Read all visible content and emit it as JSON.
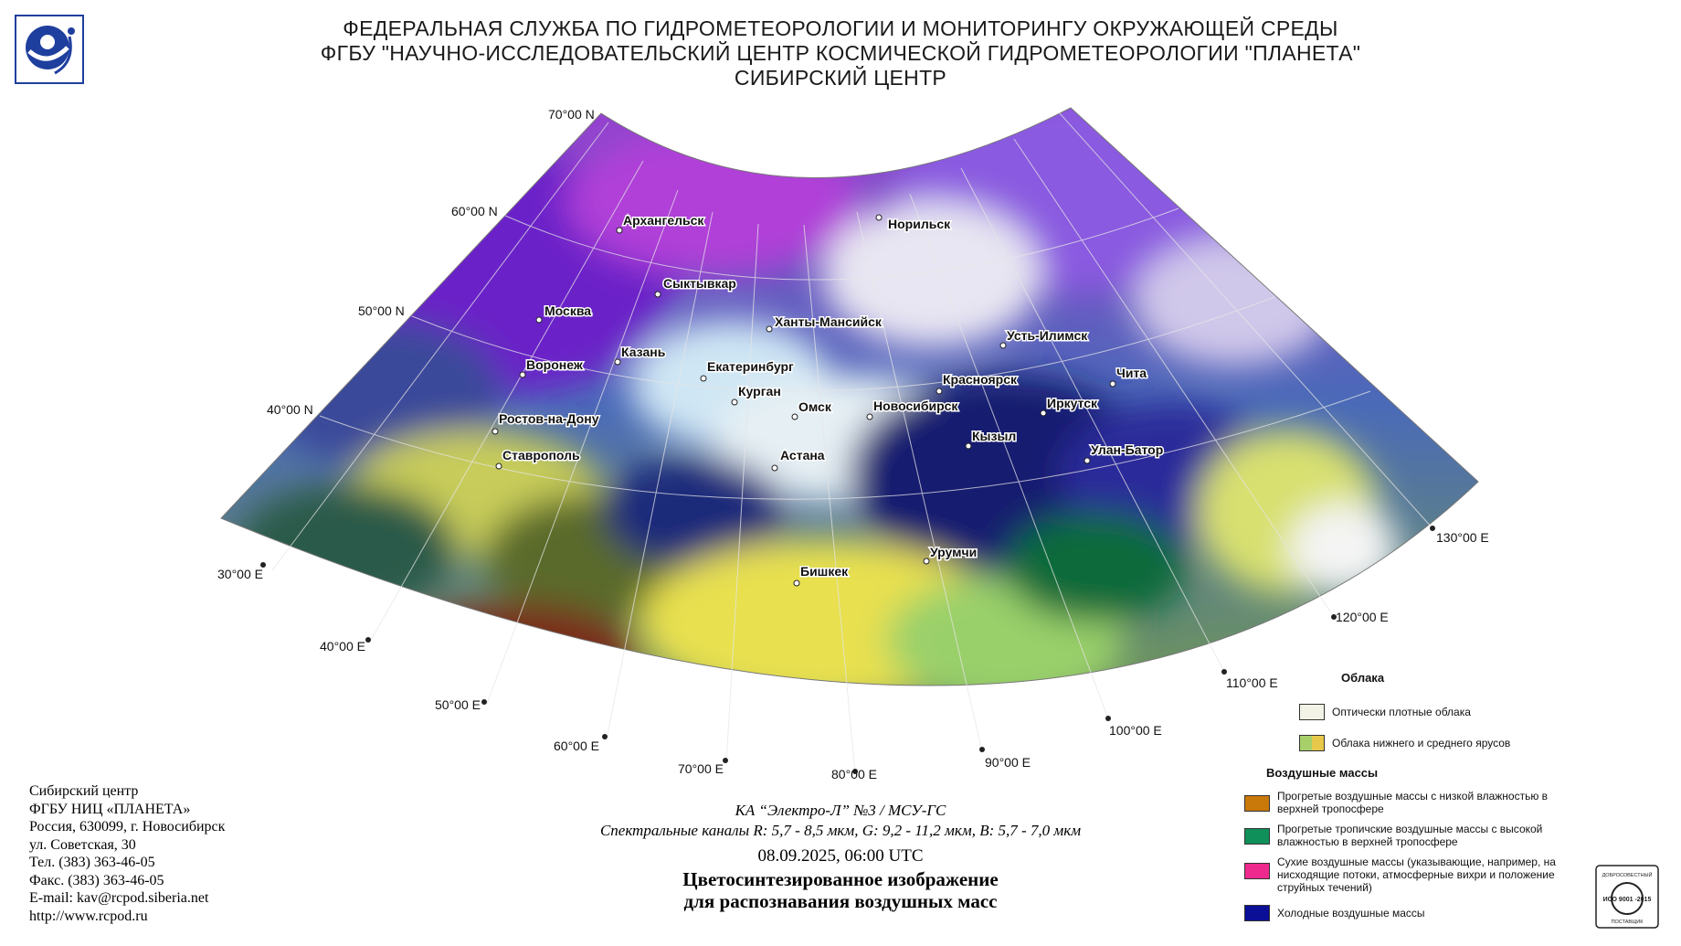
{
  "header": {
    "line1": "ФЕДЕРАЛЬНАЯ СЛУЖБА ПО ГИДРОМЕТЕОРОЛОГИИ И МОНИТОРИНГУ ОКРУЖАЮЩЕЙ СРЕДЫ",
    "line2": "ФГБУ \"НАУЧНО-ИССЛЕДОВАТЕЛЬСКИЙ ЦЕНТР КОСМИЧЕСКОЙ ГИДРОМЕТЕОРОЛОГИИ \"ПЛАНЕТА\"",
    "line3": "СИБИРСКИЙ ЦЕНТР"
  },
  "logo": {
    "icon": "roshydromet-logo",
    "color": "#1f3f9e"
  },
  "map": {
    "lat_labels": [
      "70°00 N",
      "60°00 N",
      "50°00 N",
      "40°00 N"
    ],
    "lon_labels": [
      "30°00 E",
      "40°00 E",
      "50°00 E",
      "60°00 E",
      "70°00 E",
      "80°00 E",
      "90°00 E",
      "100°00 E",
      "110°00 E",
      "120°00 E",
      "130°00 E"
    ],
    "cities": [
      "Архангельск",
      "Норильск",
      "Сыктывкар",
      "Москва",
      "Ханты-Мансийск",
      "Усть-Илимск",
      "Казань",
      "Воронеж",
      "Екатеринбург",
      "Красноярск",
      "Чита",
      "Курган",
      "Омск",
      "Новосибирск",
      "Иркутск",
      "Ростов-на-Дону",
      "Кызыл",
      "Улан-Батор",
      "Ставрополь",
      "Астана",
      "Урумчи",
      "Бишкек"
    ]
  },
  "contact": {
    "lines": [
      "Сибирский центр",
      "ФГБУ НИЦ «ПЛАНЕТА»",
      "Россия, 630099, г. Новосибирск",
      "ул. Советская, 30",
      "Тел. (383) 363-46-05",
      "Факс. (383) 363-46-05",
      "E-mail: kav@rcpod.siberia.net",
      "http://www.rcpod.ru"
    ]
  },
  "caption": {
    "satellite": "КА “Электро-Л” №3 / МСУ-ГС",
    "channels": "Спектральные каналы R: 5,7 - 8,5 мкм, G: 9,2 - 11,2 мкм, B: 5,7 - 7,0 мкм",
    "datetime": "08.09.2025, 06:00 UTC",
    "title1": "Цветосинтезированное изображение",
    "title2": "для распознавания воздушных масс"
  },
  "legend": {
    "clouds_title": "Облака",
    "clouds": [
      {
        "label": "Оптически плотные облака",
        "colors": [
          "#f2f2e6"
        ]
      },
      {
        "label": "Облака нижнего и среднего ярусов",
        "colors": [
          "#a8d06a",
          "#e8c84a"
        ]
      }
    ],
    "air_title": "Воздушные массы",
    "air": [
      {
        "label": "Прогретые воздушные массы с низкой влажностью в верхней тропосфере",
        "color": "#c9780a"
      },
      {
        "label": "Прогретые тропичские воздушные массы с высокой влажностью в верхней тропосфере",
        "color": "#0f8f5a"
      },
      {
        "label": "Сухие воздушные массы (указывающие, например, на нисходящие потоки, атмосферные вихри и положение струйных течений)",
        "color": "#ee2a8e"
      },
      {
        "label": "Холодные воздушные массы",
        "color": "#0a0f96"
      }
    ]
  },
  "iso": {
    "top": "ДОБРОСОВЕСТНЫЙ",
    "mid": "ИСО 9001 -2015",
    "bottom": "ПОСТАВЩИК"
  }
}
